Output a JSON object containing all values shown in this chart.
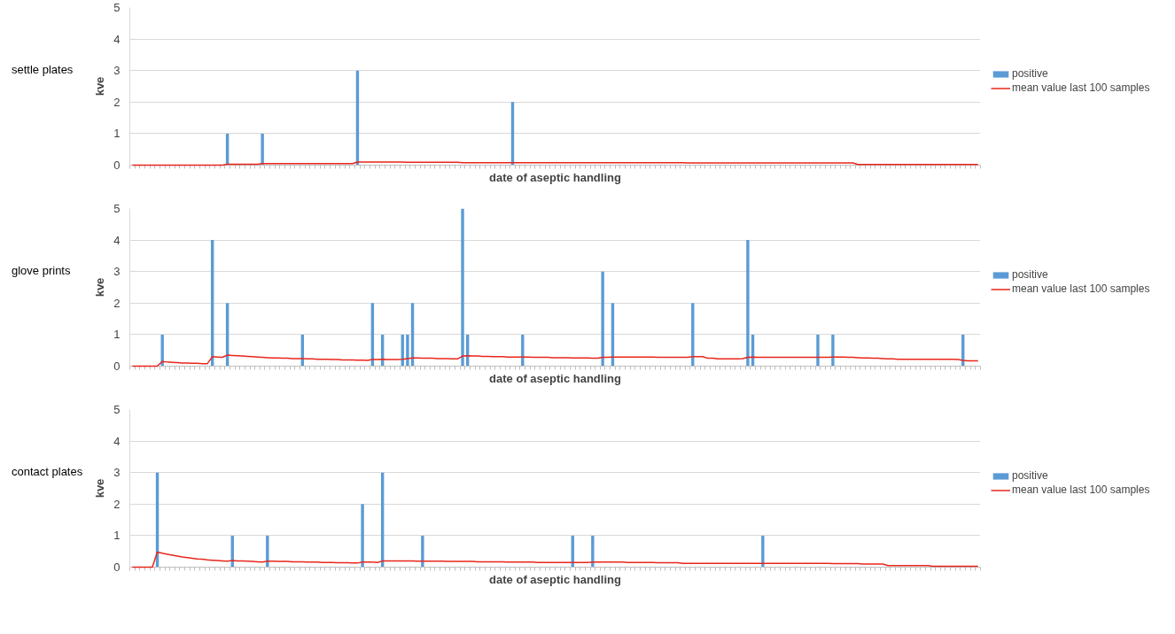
{
  "chart_data": [
    {
      "type": "bar",
      "title": "settle plates",
      "xlabel": "date of aseptic handling",
      "ylabel": "kve",
      "ylim": [
        0,
        5
      ],
      "yticks": [
        0,
        1,
        2,
        3,
        4,
        5
      ],
      "grid": "y",
      "legend": "right",
      "tick_labels": "y",
      "categories": [
        null,
        null,
        null,
        null,
        null,
        null,
        null,
        null,
        null,
        null,
        null,
        null,
        null,
        null,
        null,
        null,
        null,
        null,
        null,
        null,
        null,
        null,
        null,
        null,
        null,
        null,
        null,
        null,
        null,
        null,
        null,
        null,
        null,
        null,
        null,
        null,
        null,
        null,
        null,
        null,
        null,
        null,
        null,
        null,
        null,
        null,
        null,
        null,
        null,
        null,
        null,
        null,
        null,
        null,
        null,
        null,
        null,
        null,
        null,
        null,
        null,
        null,
        null,
        null,
        null,
        null,
        null,
        null,
        null,
        null,
        null,
        null,
        null,
        null,
        null,
        null,
        null,
        null,
        null,
        null,
        null,
        null,
        null,
        null,
        null,
        null,
        null,
        null,
        null,
        null,
        null,
        null,
        null,
        null,
        null,
        null,
        null,
        null,
        null,
        null,
        null,
        null,
        null,
        null,
        null,
        null,
        null,
        null,
        null,
        null,
        null,
        null,
        null,
        null,
        null,
        null,
        null,
        null,
        null,
        null,
        null,
        null,
        null,
        null,
        null,
        null,
        null,
        null,
        null,
        null,
        null,
        null,
        null,
        null,
        null,
        null,
        null,
        null,
        null,
        null,
        null,
        null,
        null,
        null,
        null,
        null,
        null,
        null,
        null,
        null,
        null,
        null,
        null,
        null,
        null,
        null,
        null,
        null,
        null,
        null,
        null,
        null,
        null,
        null,
        null,
        null,
        null,
        null,
        null,
        null
      ],
      "series": [
        {
          "name": "positive",
          "color": "#5b9bd5",
          "values": [
            0,
            0,
            0,
            0,
            0,
            0,
            0,
            0,
            0,
            0,
            0,
            0,
            0,
            0,
            0,
            0,
            0,
            0,
            0,
            1,
            0,
            0,
            0,
            0,
            0,
            0,
            1,
            0,
            0,
            0,
            0,
            0,
            0,
            0,
            0,
            0,
            0,
            0,
            0,
            0,
            0,
            0,
            0,
            0,
            0,
            3,
            0,
            0,
            0,
            0,
            0,
            0,
            0,
            0,
            0,
            0,
            0,
            0,
            0,
            0,
            0,
            0,
            0,
            0,
            0,
            0,
            0,
            0,
            0,
            0,
            0,
            0,
            0,
            0,
            0,
            0,
            2,
            0,
            0,
            0,
            0,
            0,
            0,
            0,
            0,
            0,
            0,
            0,
            0,
            0,
            0,
            0,
            0,
            0,
            0,
            0,
            0,
            0,
            0,
            0,
            0,
            0,
            0,
            0,
            0,
            0,
            0,
            0,
            0,
            0,
            0,
            0,
            0,
            0,
            0,
            0,
            0,
            0,
            0,
            0,
            0,
            0,
            0,
            0,
            0,
            0,
            0,
            0,
            0,
            0,
            0,
            0,
            0,
            0,
            0,
            0,
            0,
            0,
            0,
            0,
            0,
            0,
            0,
            0,
            0,
            0,
            0,
            0,
            0,
            0,
            0,
            0,
            0,
            0,
            0,
            0,
            0,
            0,
            0,
            0,
            0,
            0,
            0,
            0,
            0,
            0,
            0,
            0,
            0,
            0
          ]
        },
        {
          "name": "mean value last 100 samples",
          "type": "line",
          "color": "#e8261c",
          "values": [
            0,
            0,
            0,
            0,
            0,
            0,
            0,
            0,
            0,
            0,
            0,
            0,
            0,
            0,
            0,
            0,
            0,
            0,
            0,
            0.03,
            0.03,
            0.03,
            0.03,
            0.03,
            0.03,
            0.03,
            0.05,
            0.05,
            0.05,
            0.05,
            0.05,
            0.05,
            0.05,
            0.05,
            0.05,
            0.05,
            0.05,
            0.05,
            0.05,
            0.05,
            0.05,
            0.05,
            0.05,
            0.05,
            0.05,
            0.1,
            0.1,
            0.1,
            0.1,
            0.1,
            0.1,
            0.1,
            0.1,
            0.1,
            0.1,
            0.09,
            0.09,
            0.09,
            0.09,
            0.09,
            0.09,
            0.09,
            0.09,
            0.09,
            0.09,
            0.09,
            0.08,
            0.08,
            0.08,
            0.08,
            0.08,
            0.08,
            0.08,
            0.08,
            0.08,
            0.08,
            0.08,
            0.08,
            0.08,
            0.08,
            0.08,
            0.08,
            0.08,
            0.08,
            0.08,
            0.08,
            0.08,
            0.08,
            0.08,
            0.08,
            0.08,
            0.08,
            0.08,
            0.08,
            0.08,
            0.08,
            0.08,
            0.08,
            0.08,
            0.08,
            0.08,
            0.08,
            0.08,
            0.08,
            0.08,
            0.08,
            0.08,
            0.08,
            0.08,
            0.08,
            0.08,
            0.07,
            0.07,
            0.07,
            0.07,
            0.07,
            0.07,
            0.07,
            0.07,
            0.07,
            0.07,
            0.07,
            0.07,
            0.07,
            0.07,
            0.07,
            0.07,
            0.07,
            0.07,
            0.07,
            0.07,
            0.07,
            0.07,
            0.07,
            0.07,
            0.07,
            0.07,
            0.07,
            0.07,
            0.07,
            0.07,
            0.07,
            0.07,
            0.07,
            0.07,
            0.02,
            0.02,
            0.02,
            0.02,
            0.02,
            0.02,
            0.02,
            0.02,
            0.02,
            0.02,
            0.02,
            0.02,
            0.02,
            0.02,
            0.02,
            0.02,
            0.02,
            0.02,
            0.02,
            0.02,
            0.02,
            0.02,
            0.02,
            0.02,
            0.02
          ]
        }
      ]
    },
    {
      "type": "bar",
      "title": "glove prints",
      "xlabel": "date of aseptic handling",
      "ylabel": "kve",
      "ylim": [
        0,
        5
      ],
      "yticks": [
        0,
        1,
        2,
        3,
        4,
        5
      ],
      "grid": "y",
      "legend": "right",
      "tick_labels": "y",
      "categories": [
        null,
        null,
        null,
        null,
        null,
        null,
        null,
        null,
        null,
        null,
        null,
        null,
        null,
        null,
        null,
        null,
        null,
        null,
        null,
        null,
        null,
        null,
        null,
        null,
        null,
        null,
        null,
        null,
        null,
        null,
        null,
        null,
        null,
        null,
        null,
        null,
        null,
        null,
        null,
        null,
        null,
        null,
        null,
        null,
        null,
        null,
        null,
        null,
        null,
        null,
        null,
        null,
        null,
        null,
        null,
        null,
        null,
        null,
        null,
        null,
        null,
        null,
        null,
        null,
        null,
        null,
        null,
        null,
        null,
        null,
        null,
        null,
        null,
        null,
        null,
        null,
        null,
        null,
        null,
        null,
        null,
        null,
        null,
        null,
        null,
        null,
        null,
        null,
        null,
        null,
        null,
        null,
        null,
        null,
        null,
        null,
        null,
        null,
        null,
        null,
        null,
        null,
        null,
        null,
        null,
        null,
        null,
        null,
        null,
        null,
        null,
        null,
        null,
        null,
        null,
        null,
        null,
        null,
        null,
        null,
        null,
        null,
        null,
        null,
        null,
        null,
        null,
        null,
        null,
        null,
        null,
        null,
        null,
        null,
        null,
        null,
        null,
        null,
        null,
        null,
        null,
        null,
        null,
        null,
        null,
        null,
        null,
        null,
        null,
        null,
        null,
        null,
        null,
        null,
        null,
        null,
        null,
        null,
        null,
        null,
        null,
        null,
        null,
        null,
        null,
        null,
        null,
        null,
        null,
        null
      ],
      "series": [
        {
          "name": "positive",
          "color": "#5b9bd5",
          "values": [
            0,
            0,
            0,
            0,
            0,
            0,
            1,
            0,
            0,
            0,
            0,
            0,
            0,
            0,
            0,
            0,
            4,
            0,
            0,
            2,
            0,
            0,
            0,
            0,
            0,
            0,
            0,
            0,
            0,
            0,
            0,
            0,
            0,
            0,
            1,
            0,
            0,
            0,
            0,
            0,
            0,
            0,
            0,
            0,
            0,
            0,
            0,
            0,
            2,
            0,
            1,
            0,
            0,
            0,
            1,
            1,
            2,
            0,
            0,
            0,
            0,
            0,
            0,
            0,
            0,
            0,
            5,
            1,
            0,
            0,
            0,
            0,
            0,
            0,
            0,
            0,
            0,
            0,
            1,
            0,
            0,
            0,
            0,
            0,
            0,
            0,
            0,
            0,
            0,
            0,
            0,
            0,
            0,
            0,
            3,
            0,
            2,
            0,
            0,
            0,
            0,
            0,
            0,
            0,
            0,
            0,
            0,
            0,
            0,
            0,
            0,
            0,
            2,
            0,
            0,
            0,
            0,
            0,
            0,
            0,
            0,
            0,
            0,
            4,
            1,
            0,
            0,
            0,
            0,
            0,
            0,
            0,
            0,
            0,
            0,
            0,
            0,
            1,
            0,
            0,
            1,
            0,
            0,
            0,
            0,
            0,
            0,
            0,
            0,
            0,
            0,
            0,
            0,
            0,
            0,
            0,
            0,
            0,
            0,
            0,
            0,
            0,
            0,
            0,
            0,
            0,
            1,
            0,
            0,
            0
          ]
        },
        {
          "name": "mean value last 100 samples",
          "type": "line",
          "color": "#e8261c",
          "values": [
            0,
            0,
            0,
            0,
            0,
            0,
            0.15,
            0.13,
            0.12,
            0.11,
            0.1,
            0.1,
            0.09,
            0.09,
            0.08,
            0.08,
            0.3,
            0.29,
            0.28,
            0.35,
            0.34,
            0.33,
            0.32,
            0.31,
            0.3,
            0.29,
            0.28,
            0.27,
            0.26,
            0.26,
            0.25,
            0.25,
            0.24,
            0.24,
            0.24,
            0.23,
            0.23,
            0.22,
            0.22,
            0.22,
            0.21,
            0.21,
            0.2,
            0.2,
            0.2,
            0.19,
            0.19,
            0.18,
            0.21,
            0.21,
            0.22,
            0.21,
            0.21,
            0.21,
            0.22,
            0.24,
            0.26,
            0.26,
            0.25,
            0.25,
            0.25,
            0.24,
            0.24,
            0.24,
            0.23,
            0.23,
            0.32,
            0.33,
            0.32,
            0.32,
            0.31,
            0.31,
            0.3,
            0.3,
            0.3,
            0.29,
            0.29,
            0.29,
            0.29,
            0.29,
            0.28,
            0.28,
            0.28,
            0.28,
            0.27,
            0.27,
            0.27,
            0.27,
            0.26,
            0.26,
            0.26,
            0.26,
            0.25,
            0.25,
            0.28,
            0.28,
            0.29,
            0.29,
            0.29,
            0.29,
            0.29,
            0.29,
            0.29,
            0.29,
            0.29,
            0.28,
            0.28,
            0.28,
            0.28,
            0.28,
            0.28,
            0.28,
            0.3,
            0.3,
            0.3,
            0.25,
            0.25,
            0.23,
            0.23,
            0.23,
            0.23,
            0.23,
            0.24,
            0.28,
            0.29,
            0.28,
            0.28,
            0.28,
            0.28,
            0.28,
            0.28,
            0.28,
            0.28,
            0.28,
            0.28,
            0.28,
            0.28,
            0.28,
            0.28,
            0.28,
            0.29,
            0.29,
            0.29,
            0.28,
            0.28,
            0.27,
            0.26,
            0.26,
            0.25,
            0.25,
            0.24,
            0.23,
            0.23,
            0.22,
            0.22,
            0.22,
            0.22,
            0.22,
            0.22,
            0.22,
            0.22,
            0.22,
            0.22,
            0.22,
            0.22,
            0.21,
            0.18,
            0.17,
            0.17,
            0.17
          ]
        }
      ]
    },
    {
      "type": "bar",
      "title": "contact plates",
      "xlabel": "date of aseptic handling",
      "ylabel": "kve",
      "ylim": [
        0,
        5
      ],
      "yticks": [
        0,
        1,
        2,
        3,
        4,
        5
      ],
      "grid": "y",
      "legend": "right",
      "tick_labels": "y",
      "categories": [
        null,
        null,
        null,
        null,
        null,
        null,
        null,
        null,
        null,
        null,
        null,
        null,
        null,
        null,
        null,
        null,
        null,
        null,
        null,
        null,
        null,
        null,
        null,
        null,
        null,
        null,
        null,
        null,
        null,
        null,
        null,
        null,
        null,
        null,
        null,
        null,
        null,
        null,
        null,
        null,
        null,
        null,
        null,
        null,
        null,
        null,
        null,
        null,
        null,
        null,
        null,
        null,
        null,
        null,
        null,
        null,
        null,
        null,
        null,
        null,
        null,
        null,
        null,
        null,
        null,
        null,
        null,
        null,
        null,
        null,
        null,
        null,
        null,
        null,
        null,
        null,
        null,
        null,
        null,
        null,
        null,
        null,
        null,
        null,
        null,
        null,
        null,
        null,
        null,
        null,
        null,
        null,
        null,
        null,
        null,
        null,
        null,
        null,
        null,
        null,
        null,
        null,
        null,
        null,
        null,
        null,
        null,
        null,
        null,
        null,
        null,
        null,
        null,
        null,
        null,
        null,
        null,
        null,
        null,
        null,
        null,
        null,
        null,
        null,
        null,
        null,
        null,
        null,
        null,
        null,
        null,
        null,
        null,
        null,
        null,
        null,
        null,
        null,
        null,
        null,
        null,
        null,
        null,
        null,
        null,
        null,
        null,
        null,
        null,
        null,
        null,
        null,
        null,
        null,
        null,
        null,
        null,
        null,
        null,
        null,
        null,
        null,
        null,
        null,
        null,
        null,
        null,
        null,
        null,
        null
      ],
      "series": [
        {
          "name": "positive",
          "color": "#5b9bd5",
          "values": [
            0,
            0,
            0,
            0,
            0,
            3,
            0,
            0,
            0,
            0,
            0,
            0,
            0,
            0,
            0,
            0,
            0,
            0,
            0,
            0,
            1,
            0,
            0,
            0,
            0,
            0,
            0,
            1,
            0,
            0,
            0,
            0,
            0,
            0,
            0,
            0,
            0,
            0,
            0,
            0,
            0,
            0,
            0,
            0,
            0,
            0,
            2,
            0,
            0,
            0,
            3,
            0,
            0,
            0,
            0,
            0,
            0,
            0,
            1,
            0,
            0,
            0,
            0,
            0,
            0,
            0,
            0,
            0,
            0,
            0,
            0,
            0,
            0,
            0,
            0,
            0,
            0,
            0,
            0,
            0,
            0,
            0,
            0,
            0,
            0,
            0,
            0,
            0,
            1,
            0,
            0,
            0,
            1,
            0,
            0,
            0,
            0,
            0,
            0,
            0,
            0,
            0,
            0,
            0,
            0,
            0,
            0,
            0,
            0,
            0,
            0,
            0,
            0,
            0,
            0,
            0,
            0,
            0,
            0,
            0,
            0,
            0,
            0,
            0,
            0,
            0,
            1,
            0,
            0,
            0,
            0,
            0,
            0,
            0,
            0,
            0,
            0,
            0,
            0,
            0,
            0,
            0,
            0,
            0,
            0,
            0,
            0,
            0,
            0,
            0,
            0,
            0,
            0,
            0,
            0,
            0,
            0,
            0,
            0,
            0,
            0,
            0,
            0,
            0,
            0,
            0,
            0,
            0,
            0,
            0
          ]
        },
        {
          "name": "mean value last 100 samples",
          "type": "line",
          "color": "#e8261c",
          "values": [
            0,
            0,
            0,
            0,
            0,
            0.48,
            0.44,
            0.41,
            0.38,
            0.35,
            0.32,
            0.3,
            0.28,
            0.26,
            0.25,
            0.23,
            0.22,
            0.21,
            0.2,
            0.19,
            0.21,
            0.2,
            0.2,
            0.19,
            0.18,
            0.17,
            0.16,
            0.19,
            0.19,
            0.18,
            0.18,
            0.18,
            0.17,
            0.17,
            0.17,
            0.16,
            0.16,
            0.16,
            0.15,
            0.15,
            0.15,
            0.14,
            0.14,
            0.14,
            0.13,
            0.13,
            0.16,
            0.16,
            0.16,
            0.15,
            0.2,
            0.2,
            0.2,
            0.2,
            0.2,
            0.2,
            0.2,
            0.19,
            0.19,
            0.19,
            0.19,
            0.19,
            0.19,
            0.18,
            0.18,
            0.18,
            0.18,
            0.18,
            0.18,
            0.17,
            0.17,
            0.17,
            0.17,
            0.17,
            0.17,
            0.16,
            0.16,
            0.16,
            0.16,
            0.16,
            0.16,
            0.15,
            0.15,
            0.15,
            0.15,
            0.15,
            0.15,
            0.15,
            0.15,
            0.15,
            0.15,
            0.15,
            0.16,
            0.16,
            0.16,
            0.16,
            0.16,
            0.16,
            0.16,
            0.15,
            0.15,
            0.15,
            0.15,
            0.15,
            0.15,
            0.14,
            0.14,
            0.14,
            0.14,
            0.14,
            0.12,
            0.12,
            0.12,
            0.12,
            0.12,
            0.12,
            0.12,
            0.12,
            0.12,
            0.12,
            0.12,
            0.12,
            0.12,
            0.12,
            0.12,
            0.12,
            0.12,
            0.12,
            0.12,
            0.12,
            0.12,
            0.12,
            0.12,
            0.12,
            0.12,
            0.12,
            0.12,
            0.12,
            0.12,
            0.12,
            0.11,
            0.11,
            0.11,
            0.11,
            0.11,
            0.11,
            0.1,
            0.1,
            0.1,
            0.1,
            0.1,
            0.05,
            0.05,
            0.05,
            0.05,
            0.05,
            0.05,
            0.05,
            0.05,
            0.05,
            0.03,
            0.03,
            0.03,
            0.03,
            0.03,
            0.03,
            0.03,
            0.03,
            0.03,
            0.03
          ]
        }
      ]
    }
  ]
}
